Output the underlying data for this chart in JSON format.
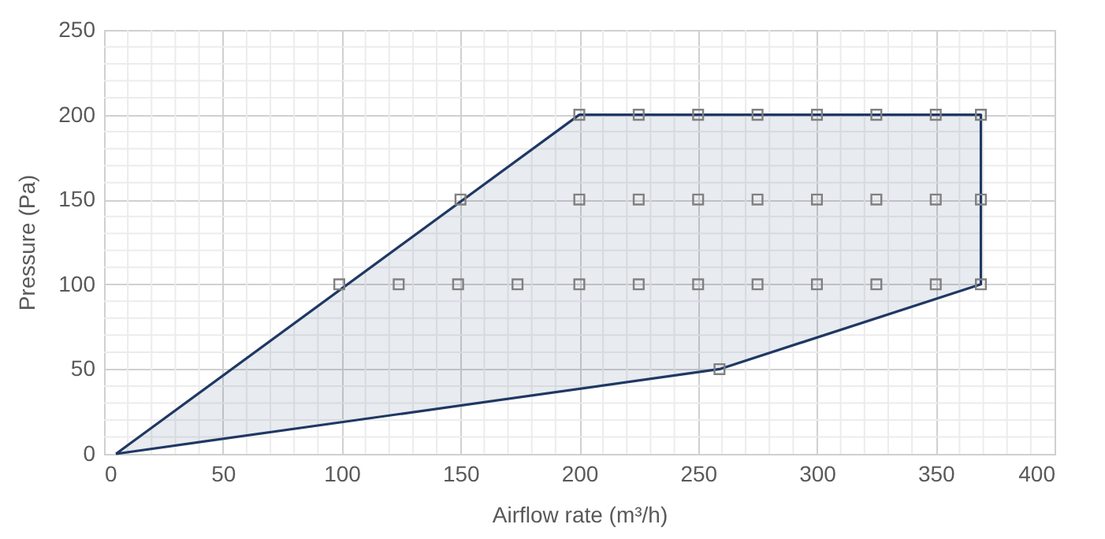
{
  "chart_data": {
    "type": "scatter",
    "xlabel": "Airflow rate (m³/h)",
    "ylabel": "Pressure (Pa)",
    "xlim": [
      0,
      400
    ],
    "xticks": [
      0,
      50,
      100,
      150,
      200,
      250,
      300,
      350,
      400
    ],
    "ylim": [
      0,
      250
    ],
    "yticks": [
      0,
      50,
      100,
      150,
      200,
      250
    ],
    "grid": true,
    "marker": "square",
    "series": [
      {
        "type": "area",
        "color": "#1f3864",
        "marker": "none",
        "x": [
          5,
          200,
          369,
          369,
          259,
          5
        ],
        "values": [
          0,
          200,
          200,
          100,
          50,
          0
        ]
      },
      {
        "color": "#808080",
        "x": [
          200,
          225,
          250,
          275,
          300,
          325,
          350,
          369,
          150,
          200,
          225,
          250,
          275,
          300,
          325,
          350,
          369,
          99,
          124,
          149,
          174,
          200,
          225,
          250,
          275,
          300,
          325,
          350,
          369,
          259
        ],
        "values": [
          200,
          200,
          200,
          200,
          200,
          200,
          200,
          200,
          150,
          150,
          150,
          150,
          150,
          150,
          150,
          150,
          150,
          100,
          100,
          100,
          100,
          100,
          100,
          100,
          100,
          100,
          100,
          100,
          100,
          50
        ]
      }
    ]
  }
}
